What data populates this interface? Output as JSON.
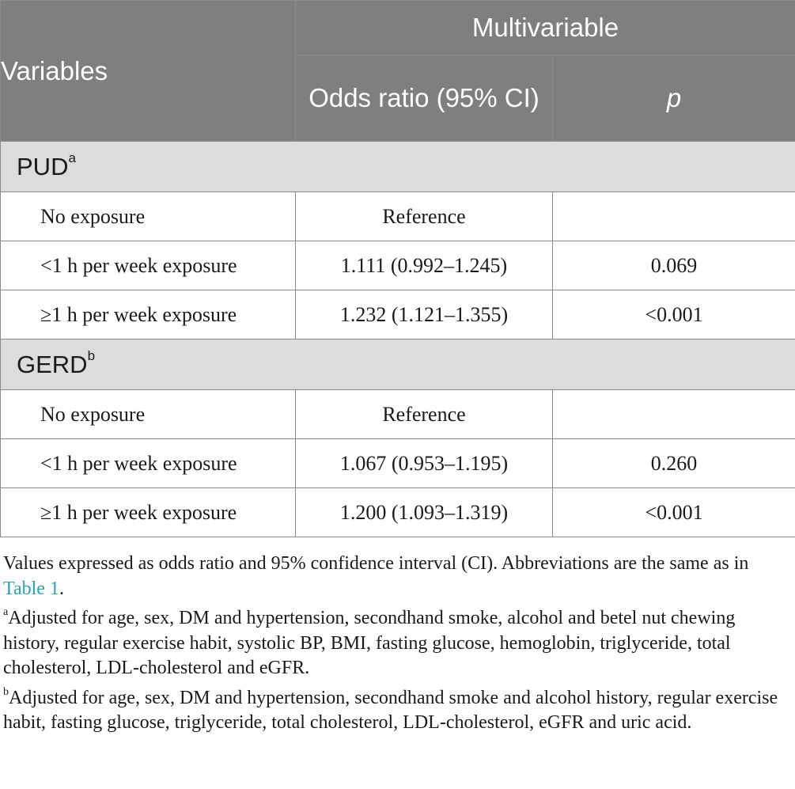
{
  "table": {
    "header": {
      "variables": "Variables",
      "multivariable": "Multivariable",
      "odds_ratio": "Odds ratio (95% CI)",
      "p": "p"
    },
    "groups": [
      {
        "name": "PUD",
        "sup": "a",
        "rows": [
          {
            "label": "No exposure",
            "or": "Reference",
            "p": ""
          },
          {
            "label": "<1 h per week exposure",
            "or": "1.111 (0.992–1.245)",
            "p": "0.069"
          },
          {
            "label": "≥1 h per week exposure",
            "or": "1.232 (1.121–1.355)",
            "p": "<0.001"
          }
        ]
      },
      {
        "name": "GERD",
        "sup": "b",
        "rows": [
          {
            "label": "No exposure",
            "or": "Reference",
            "p": ""
          },
          {
            "label": "<1 h per week exposure",
            "or": "1.067 (0.953–1.195)",
            "p": "0.260"
          },
          {
            "label": "≥1 h per week exposure",
            "or": "1.200 (1.093–1.319)",
            "p": "<0.001"
          }
        ]
      }
    ]
  },
  "notes": {
    "main_text": "Values expressed as odds ratio and 95% confidence interval (CI). Abbreviations are the same as in ",
    "main_link": "Table 1",
    "main_end": ".",
    "a_sup": "a",
    "a_text": "Adjusted for age, sex, DM and hypertension, secondhand smoke, alcohol and betel nut chewing history, regular exercise habit, systolic BP, BMI, fasting glucose, hemoglobin, triglyceride, total cholesterol, LDL-cholesterol and eGFR.",
    "b_sup": "b",
    "b_text": "Adjusted for age, sex, DM and hypertension, secondhand smoke and alcohol history, regular exercise habit, fasting glucose, triglyceride, total cholesterol, LDL-cholesterol, eGFR and uric acid."
  }
}
